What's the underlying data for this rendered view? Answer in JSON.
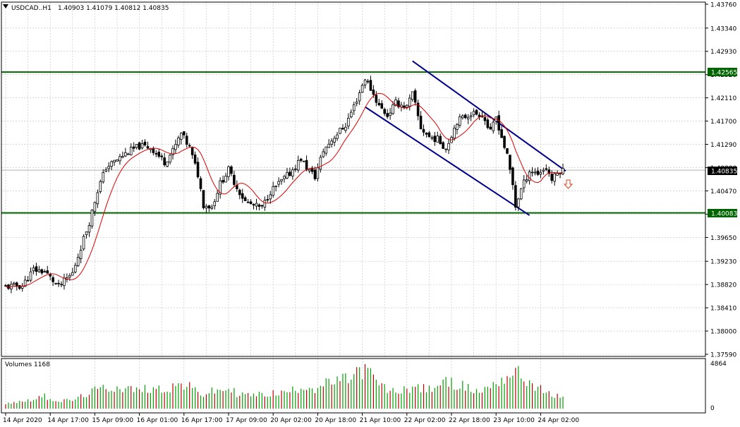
{
  "header": {
    "symbol": "USDCAD..H1",
    "ohlc": "1.40903 1.41079 1.40812 1.40835"
  },
  "volume_panel": {
    "title": "Volumes 1168",
    "max_label": "4864",
    "zero_label": "0"
  },
  "colors": {
    "background": "#ffffff",
    "grid": "#c0c0c0",
    "candles": "#000000",
    "moving_average": "#dd0000",
    "channel": "#00008b",
    "support_resistance": "#006400",
    "volumes": "#00a000",
    "price_tag": "#000000",
    "level_tag": "#006400"
  },
  "chart_data": {
    "type": "candlestick",
    "symbol": "USDCAD",
    "timeframe": "H1",
    "y_ticks": [
      "1.43760",
      "1.43340",
      "1.42930",
      "1.42520",
      "1.42110",
      "1.41700",
      "1.41290",
      "1.40880",
      "1.40470",
      "1.40060",
      "1.39650",
      "1.39230",
      "1.38820",
      "1.38410",
      "1.38000",
      "1.37590"
    ],
    "ylim": [
      1.3759,
      1.4376
    ],
    "x_ticks": [
      "14 Apr 2020",
      "14 Apr 17:00",
      "15 Apr 09:00",
      "16 Apr 01:00",
      "16 Apr 17:00",
      "17 Apr 09:00",
      "20 Apr 02:00",
      "20 Apr 18:00",
      "21 Apr 10:00",
      "22 Apr 02:00",
      "22 Apr 18:00",
      "23 Apr 10:00",
      "24 Apr 02:00"
    ],
    "x_tick_bars": [
      0,
      16,
      32,
      48,
      64,
      80,
      96,
      112,
      128,
      144,
      160,
      176,
      192
    ],
    "current_price": "1.40835",
    "resistance": "1.42565",
    "support": "1.40083",
    "anchors": [
      [
        0,
        1.3878
      ],
      [
        6,
        1.388
      ],
      [
        10,
        1.3908
      ],
      [
        14,
        1.3905
      ],
      [
        19,
        1.3878
      ],
      [
        24,
        1.3902
      ],
      [
        27,
        1.3948
      ],
      [
        30,
        1.3992
      ],
      [
        33,
        1.4048
      ],
      [
        36,
        1.4088
      ],
      [
        40,
        1.4102
      ],
      [
        44,
        1.4116
      ],
      [
        48,
        1.4126
      ],
      [
        52,
        1.4124
      ],
      [
        57,
        1.4098
      ],
      [
        60,
        1.4117
      ],
      [
        63,
        1.4148
      ],
      [
        66,
        1.4123
      ],
      [
        69,
        1.4076
      ],
      [
        71,
        1.4023
      ],
      [
        74,
        1.4019
      ],
      [
        77,
        1.406
      ],
      [
        80,
        1.4084
      ],
      [
        83,
        1.4053
      ],
      [
        86,
        1.4028
      ],
      [
        89,
        1.4021
      ],
      [
        92,
        1.4017
      ],
      [
        95,
        1.4046
      ],
      [
        99,
        1.4064
      ],
      [
        102,
        1.4078
      ],
      [
        106,
        1.4104
      ],
      [
        108,
        1.4088
      ],
      [
        111,
        1.4072
      ],
      [
        114,
        1.4118
      ],
      [
        118,
        1.4143
      ],
      [
        122,
        1.4163
      ],
      [
        126,
        1.4208
      ],
      [
        129,
        1.4246
      ],
      [
        131,
        1.4227
      ],
      [
        134,
        1.4197
      ],
      [
        137,
        1.418
      ],
      [
        140,
        1.4202
      ],
      [
        144,
        1.4195
      ],
      [
        146,
        1.4218
      ],
      [
        149,
        1.4158
      ],
      [
        152,
        1.4142
      ],
      [
        155,
        1.4138
      ],
      [
        158,
        1.4122
      ],
      [
        162,
        1.417
      ],
      [
        167,
        1.4184
      ],
      [
        171,
        1.4182
      ],
      [
        174,
        1.415
      ],
      [
        176,
        1.4177
      ],
      [
        178,
        1.4142
      ],
      [
        180,
        1.4108
      ],
      [
        182,
        1.4058
      ],
      [
        183,
        1.402
      ],
      [
        185,
        1.405
      ],
      [
        188,
        1.4083
      ],
      [
        191,
        1.4078
      ],
      [
        194,
        1.4088
      ],
      [
        196,
        1.4067
      ],
      [
        199,
        1.4083
      ],
      [
        200,
        1.4083
      ]
    ],
    "channel_upper": [
      [
        146,
        1.4276
      ],
      [
        201,
        1.4082
      ]
    ],
    "channel_lower": [
      [
        129,
        1.4195
      ],
      [
        188,
        1.4004
      ]
    ],
    "volumes": [
      [
        0,
        620
      ],
      [
        6,
        780
      ],
      [
        10,
        1100
      ],
      [
        14,
        1350
      ],
      [
        19,
        820
      ],
      [
        24,
        920
      ],
      [
        27,
        1280
      ],
      [
        30,
        1740
      ],
      [
        33,
        2060
      ],
      [
        36,
        2240
      ],
      [
        40,
        2330
      ],
      [
        44,
        2190
      ],
      [
        48,
        1960
      ],
      [
        52,
        2280
      ],
      [
        57,
        2100
      ],
      [
        60,
        2420
      ],
      [
        63,
        2660
      ],
      [
        66,
        2320
      ],
      [
        69,
        1860
      ],
      [
        71,
        1520
      ],
      [
        74,
        1860
      ],
      [
        77,
        1950
      ],
      [
        80,
        2190
      ],
      [
        83,
        1670
      ],
      [
        86,
        1500
      ],
      [
        89,
        1480
      ],
      [
        92,
        1520
      ],
      [
        95,
        1660
      ],
      [
        99,
        1690
      ],
      [
        102,
        1890
      ],
      [
        106,
        2360
      ],
      [
        108,
        2550
      ],
      [
        111,
        2160
      ],
      [
        114,
        2620
      ],
      [
        118,
        2920
      ],
      [
        122,
        3150
      ],
      [
        126,
        3900
      ],
      [
        129,
        4330
      ],
      [
        131,
        3750
      ],
      [
        134,
        2620
      ],
      [
        137,
        2070
      ],
      [
        140,
        1770
      ],
      [
        144,
        2230
      ],
      [
        146,
        2360
      ],
      [
        149,
        2200
      ],
      [
        152,
        2080
      ],
      [
        155,
        2620
      ],
      [
        158,
        2820
      ],
      [
        162,
        2720
      ],
      [
        167,
        2060
      ],
      [
        171,
        1860
      ],
      [
        174,
        2590
      ],
      [
        176,
        2930
      ],
      [
        178,
        3150
      ],
      [
        180,
        3600
      ],
      [
        182,
        3950
      ],
      [
        183,
        4000
      ],
      [
        185,
        3540
      ],
      [
        188,
        2900
      ],
      [
        191,
        2300
      ],
      [
        194,
        1650
      ],
      [
        196,
        1500
      ],
      [
        199,
        1320
      ],
      [
        200,
        1260
      ]
    ],
    "volume_max": 4864
  }
}
